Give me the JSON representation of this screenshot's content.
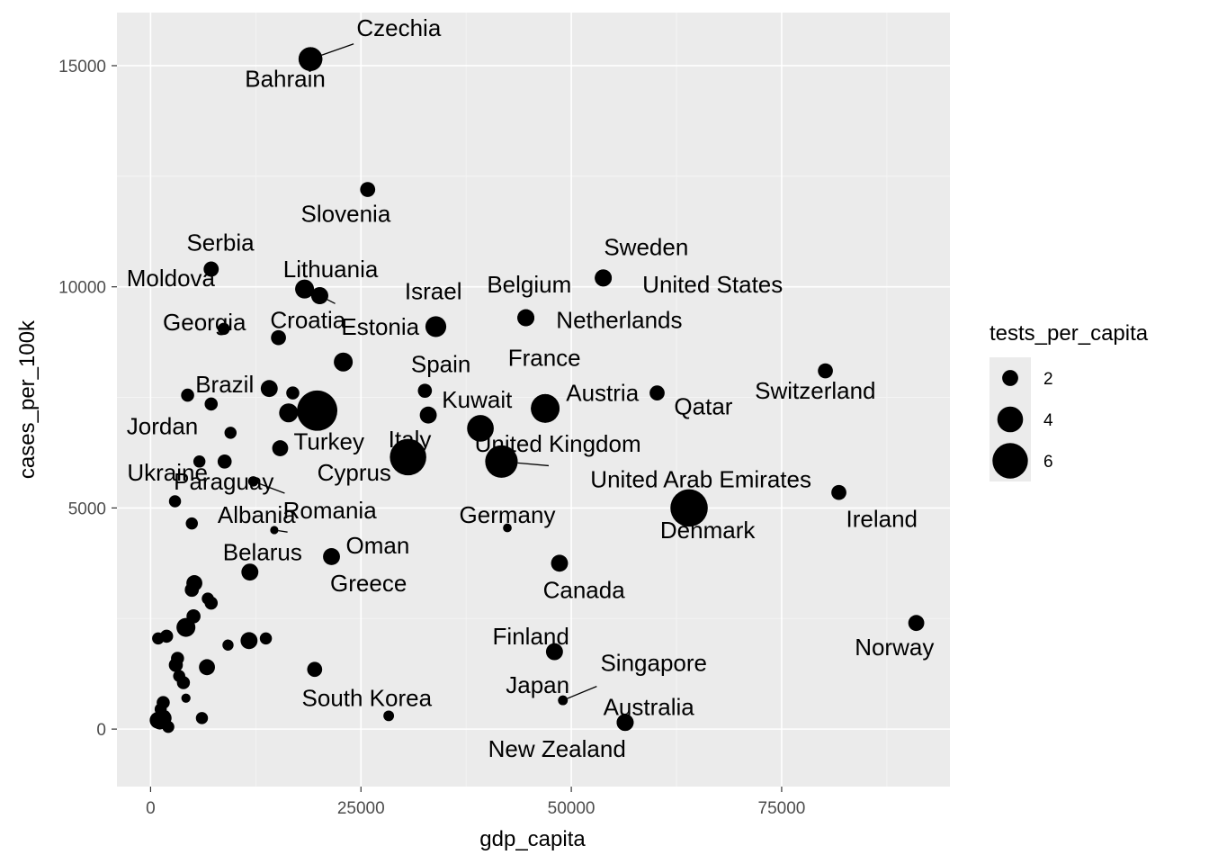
{
  "chart_data": {
    "type": "scatter",
    "xlabel": "gdp_capita",
    "ylabel": "cases_per_100k",
    "xlim": [
      -4000,
      95000
    ],
    "ylim": [
      -1300,
      16200
    ],
    "x_ticks": [
      0,
      25000,
      50000,
      75000
    ],
    "x_tick_labels": [
      "0",
      "25000",
      "50000",
      "75000"
    ],
    "y_ticks": [
      0,
      5000,
      10000,
      15000
    ],
    "y_tick_labels": [
      "0",
      "5000",
      "10000",
      "15000"
    ],
    "size_var": "tests_per_capita",
    "size_range": [
      0.1,
      7
    ],
    "legend": {
      "title": "tests_per_capita",
      "position": "right",
      "entries": [
        {
          "label": "2",
          "value": 2
        },
        {
          "label": "4",
          "value": 4
        },
        {
          "label": "6",
          "value": 6
        }
      ]
    },
    "labeled_points": [
      {
        "name": "Bahrain",
        "x": 19000,
        "y": 15150,
        "size": 3.6,
        "label_x": 16000,
        "label_y": 14700
      },
      {
        "name": "Czechia",
        "x": 19000,
        "y": 15150,
        "size": 3.6,
        "label_x": 29500,
        "label_y": 15850
      },
      {
        "name": "Slovenia",
        "x": 25800,
        "y": 12200,
        "size": 1.8,
        "label_x": 23200,
        "label_y": 11650
      },
      {
        "name": "Serbia",
        "x": 7200,
        "y": 10400,
        "size": 1.8,
        "label_x": 8300,
        "label_y": 11000
      },
      {
        "name": "Moldova",
        "x": 7200,
        "y": 10400,
        "size": 1.8,
        "label_x": 2400,
        "label_y": 10200
      },
      {
        "name": "Lithuania",
        "x": 18300,
        "y": 9950,
        "size": 2.6,
        "label_x": 21400,
        "label_y": 10400
      },
      {
        "name": "Croatia",
        "x": 20100,
        "y": 9800,
        "size": 2.2,
        "label_x": 18700,
        "label_y": 9250
      },
      {
        "name": "Estonia",
        "x": 20100,
        "y": 9800,
        "size": 2.2,
        "label_x": 27300,
        "label_y": 9100
      },
      {
        "name": "Georgia",
        "x": 8700,
        "y": 9050,
        "size": 1.2,
        "label_x": 6400,
        "label_y": 9200
      },
      {
        "name": "Israel",
        "x": 33900,
        "y": 9100,
        "size": 3.0,
        "label_x": 33600,
        "label_y": 9900
      },
      {
        "name": "Belgium",
        "x": 44600,
        "y": 9300,
        "size": 2.2,
        "label_x": 45000,
        "label_y": 10050
      },
      {
        "name": "Netherlands",
        "x": 44600,
        "y": 9300,
        "size": 2.2,
        "label_x": 55700,
        "label_y": 9250
      },
      {
        "name": "Sweden",
        "x": 53800,
        "y": 10200,
        "size": 2.2,
        "label_x": 58900,
        "label_y": 10900
      },
      {
        "name": "United States",
        "x": 53800,
        "y": 10200,
        "size": 2.2,
        "label_x": 66800,
        "label_y": 10050
      },
      {
        "name": "Spain",
        "x": 32600,
        "y": 7650,
        "size": 1.6,
        "label_x": 34500,
        "label_y": 8250
      },
      {
        "name": "France",
        "x": 46900,
        "y": 7250,
        "size": 4.6,
        "label_x": 46800,
        "label_y": 8400
      },
      {
        "name": "Kuwait",
        "x": 33000,
        "y": 7100,
        "size": 2.2,
        "label_x": 38800,
        "label_y": 7450
      },
      {
        "name": "Austria",
        "x": 46900,
        "y": 7250,
        "size": 4.6,
        "label_x": 53700,
        "label_y": 7600
      },
      {
        "name": "Qatar",
        "x": 60200,
        "y": 7600,
        "size": 1.8,
        "label_x": 65700,
        "label_y": 7300
      },
      {
        "name": "Switzerland",
        "x": 80200,
        "y": 8100,
        "size": 1.8,
        "label_x": 79000,
        "label_y": 7650
      },
      {
        "name": "Brazil",
        "x": 14100,
        "y": 7700,
        "size": 2.2,
        "label_x": 8800,
        "label_y": 7800
      },
      {
        "name": "Jordan",
        "x": 4400,
        "y": 7550,
        "size": 1.4,
        "label_x": 1400,
        "label_y": 6850
      },
      {
        "name": "Turkey",
        "x": 16400,
        "y": 7150,
        "size": 2.6,
        "label_x": 21200,
        "label_y": 6500
      },
      {
        "name": "Italy",
        "x": 30600,
        "y": 6150,
        "size": 6.2,
        "label_x": 30800,
        "label_y": 6550
      },
      {
        "name": "United Kingdom",
        "x": 39200,
        "y": 6800,
        "size": 4.2,
        "label_x": 48400,
        "label_y": 6450
      },
      {
        "name": "Cyprus",
        "x": 19800,
        "y": 7200,
        "size": 7.0,
        "label_x": 24200,
        "label_y": 5800
      },
      {
        "name": "United Arab Emirates",
        "x": 41700,
        "y": 6050,
        "size": 5.4,
        "label_x": 65400,
        "label_y": 5650
      },
      {
        "name": "Ukraine",
        "x": 2900,
        "y": 5150,
        "size": 1.2,
        "label_x": 2000,
        "label_y": 5800
      },
      {
        "name": "Paraguay",
        "x": 12200,
        "y": 5600,
        "size": 0.8,
        "label_x": 8700,
        "label_y": 5600
      },
      {
        "name": "Romania",
        "x": 12200,
        "y": 5600,
        "size": 0.8,
        "label_x": 21300,
        "label_y": 4950
      },
      {
        "name": "Albania",
        "x": 4900,
        "y": 4650,
        "size": 1.2,
        "label_x": 12600,
        "label_y": 4850
      },
      {
        "name": "Oman",
        "x": 14700,
        "y": 4500,
        "size": 0.4,
        "label_x": 27000,
        "label_y": 4150
      },
      {
        "name": "Belarus",
        "x": 11800,
        "y": 3550,
        "size": 2.2,
        "label_x": 13300,
        "label_y": 4000
      },
      {
        "name": "Greece",
        "x": 21500,
        "y": 3900,
        "size": 2.2,
        "label_x": 25900,
        "label_y": 3300
      },
      {
        "name": "Germany",
        "x": 42400,
        "y": 4550,
        "size": 0.5,
        "label_x": 42400,
        "label_y": 4850
      },
      {
        "name": "Denmark",
        "x": 64000,
        "y": 5000,
        "size": 6.4,
        "label_x": 66200,
        "label_y": 4500
      },
      {
        "name": "Ireland",
        "x": 81800,
        "y": 5350,
        "size": 1.8,
        "label_x": 86900,
        "label_y": 4750
      },
      {
        "name": "Canada",
        "x": 48600,
        "y": 3750,
        "size": 2.2,
        "label_x": 51500,
        "label_y": 3150
      },
      {
        "name": "Finland",
        "x": 48000,
        "y": 1750,
        "size": 2.2,
        "label_x": 45200,
        "label_y": 2100
      },
      {
        "name": "Singapore",
        "x": 49000,
        "y": 650,
        "size": 0.7,
        "label_x": 59800,
        "label_y": 1500
      },
      {
        "name": "Japan",
        "x": 49000,
        "y": 650,
        "size": 0.7,
        "label_x": 46000,
        "label_y": 1000
      },
      {
        "name": "Australia",
        "x": 56400,
        "y": 150,
        "size": 2.2,
        "label_x": 59200,
        "label_y": 500
      },
      {
        "name": "New Zealand",
        "x": 56400,
        "y": 150,
        "size": 2.2,
        "label_x": 48300,
        "label_y": -450
      },
      {
        "name": "South Korea",
        "x": 28300,
        "y": 300,
        "size": 0.9,
        "label_x": 25700,
        "label_y": 700
      },
      {
        "name": "Norway",
        "x": 91000,
        "y": 2400,
        "size": 2.0,
        "label_x": 88400,
        "label_y": 1850
      }
    ],
    "unlabeled_points": [
      {
        "x": 19500,
        "y": 1350,
        "size": 1.8
      },
      {
        "x": 22900,
        "y": 8300,
        "size": 2.6
      },
      {
        "x": 15200,
        "y": 8850,
        "size": 1.8
      },
      {
        "x": 16900,
        "y": 7600,
        "size": 1.4
      },
      {
        "x": 7200,
        "y": 7350,
        "size": 1.4
      },
      {
        "x": 9500,
        "y": 6700,
        "size": 1.2
      },
      {
        "x": 8800,
        "y": 6050,
        "size": 1.6
      },
      {
        "x": 5800,
        "y": 6050,
        "size": 1.2
      },
      {
        "x": 15400,
        "y": 6350,
        "size": 2.0
      },
      {
        "x": 5200,
        "y": 3300,
        "size": 2.0
      },
      {
        "x": 4900,
        "y": 3150,
        "size": 1.6
      },
      {
        "x": 6800,
        "y": 2950,
        "size": 1.2
      },
      {
        "x": 7200,
        "y": 2850,
        "size": 1.4
      },
      {
        "x": 5100,
        "y": 2550,
        "size": 1.6
      },
      {
        "x": 4200,
        "y": 2300,
        "size": 2.6
      },
      {
        "x": 11700,
        "y": 2000,
        "size": 2.2
      },
      {
        "x": 13700,
        "y": 2050,
        "size": 1.2
      },
      {
        "x": 9200,
        "y": 1900,
        "size": 1.0
      },
      {
        "x": 1900,
        "y": 2100,
        "size": 1.4
      },
      {
        "x": 900,
        "y": 2050,
        "size": 1.2
      },
      {
        "x": 3200,
        "y": 1600,
        "size": 1.4
      },
      {
        "x": 3000,
        "y": 1450,
        "size": 1.6
      },
      {
        "x": 6700,
        "y": 1400,
        "size": 2.0
      },
      {
        "x": 3400,
        "y": 1200,
        "size": 1.2
      },
      {
        "x": 3900,
        "y": 1050,
        "size": 1.4
      },
      {
        "x": 4200,
        "y": 700,
        "size": 0.6
      },
      {
        "x": 1500,
        "y": 600,
        "size": 1.4
      },
      {
        "x": 1200,
        "y": 450,
        "size": 1.2
      },
      {
        "x": 1700,
        "y": 300,
        "size": 1.0
      },
      {
        "x": 1600,
        "y": 250,
        "size": 1.8
      },
      {
        "x": 900,
        "y": 200,
        "size": 2.2
      },
      {
        "x": 1100,
        "y": 150,
        "size": 1.6
      },
      {
        "x": 2100,
        "y": 50,
        "size": 1.2
      },
      {
        "x": 6100,
        "y": 250,
        "size": 1.2
      }
    ]
  },
  "colors": {
    "panel_background": "#ebebeb",
    "grid": "#ffffff",
    "points": "#000000",
    "tick_text": "#4d4d4d",
    "axis_text": "#000000",
    "legend_key_background": "#ebebeb"
  }
}
